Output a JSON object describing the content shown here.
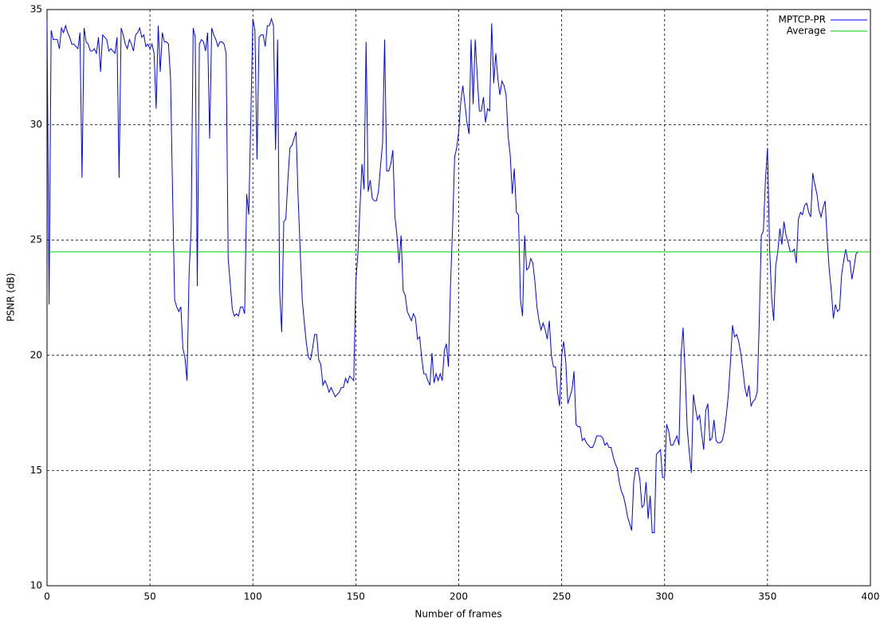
{
  "chart_data": {
    "type": "line",
    "xlabel": "Number of frames",
    "ylabel": "PSNR (dB)",
    "xlim": [
      0,
      400
    ],
    "ylim": [
      10,
      35
    ],
    "xticks": [
      0,
      50,
      100,
      150,
      200,
      250,
      300,
      350,
      400
    ],
    "yticks": [
      10,
      15,
      20,
      25,
      30,
      35
    ],
    "grid": true,
    "legend": "top-right",
    "series": [
      {
        "name": "MPTCP-PR",
        "color": "#0000ff",
        "x": [
          0,
          1,
          2,
          3,
          4,
          5,
          6,
          7,
          8,
          9,
          10,
          11,
          12,
          13,
          14,
          15,
          16,
          17,
          18,
          19,
          20,
          21,
          22,
          23,
          24,
          25,
          26,
          27,
          28,
          29,
          30,
          31,
          32,
          33,
          34,
          35,
          36,
          37,
          38,
          39,
          40,
          41,
          42,
          43,
          44,
          45,
          46,
          47,
          48,
          49,
          50,
          51,
          52,
          53,
          54,
          55,
          56,
          57,
          58,
          59,
          60,
          61,
          62,
          63,
          64,
          65,
          66,
          67,
          68,
          69,
          70,
          71,
          72,
          73,
          74,
          75,
          76,
          77,
          78,
          79,
          80,
          81,
          82,
          83,
          84,
          85,
          86,
          87,
          88,
          89,
          90,
          91,
          92,
          93,
          94,
          95,
          96,
          97,
          98,
          100,
          101,
          102,
          103,
          104,
          105,
          106,
          107,
          108,
          109,
          110,
          111,
          112,
          113,
          114,
          115,
          116,
          117,
          118,
          119,
          120,
          121,
          122,
          123,
          124,
          125,
          126,
          127,
          128,
          129,
          130,
          131,
          132,
          133,
          134,
          135,
          136,
          137,
          138,
          139,
          140,
          141,
          142,
          143,
          144,
          145,
          146,
          147,
          148,
          149,
          150,
          151,
          153,
          154,
          155,
          156,
          157,
          158,
          159,
          160,
          161,
          162,
          163,
          164,
          165,
          166,
          167,
          168,
          169,
          170,
          171,
          172,
          173,
          174,
          175,
          176,
          177,
          178,
          179,
          180,
          181,
          182,
          183,
          184,
          185,
          186,
          187,
          188,
          189,
          190,
          191,
          192,
          193,
          194,
          195,
          196,
          197,
          198,
          199,
          200,
          201,
          202,
          204,
          205,
          206,
          207,
          208,
          209,
          210,
          211,
          212,
          213,
          214,
          215,
          216,
          217,
          218,
          219,
          220,
          221,
          222,
          223,
          224,
          225,
          226,
          227,
          228,
          229,
          230,
          231,
          232,
          233,
          234,
          235,
          236,
          237,
          238,
          239,
          240,
          241,
          242,
          243,
          244,
          245,
          246,
          247,
          248,
          249,
          250,
          251,
          252,
          253,
          255,
          256,
          257,
          258,
          259,
          260,
          261,
          262,
          263,
          264,
          265,
          266,
          267,
          268,
          269,
          270,
          271,
          272,
          273,
          274,
          275,
          276,
          277,
          278,
          279,
          280,
          281,
          282,
          283,
          284,
          285,
          286,
          287,
          288,
          289,
          290,
          291,
          292,
          293,
          294,
          295,
          296,
          297,
          298,
          299,
          300,
          301,
          302,
          303,
          304,
          306,
          307,
          308,
          309,
          310,
          311,
          312,
          313,
          314,
          315,
          316,
          317,
          318,
          319,
          320,
          321,
          322,
          323,
          324,
          325,
          326,
          327,
          328,
          329,
          330,
          331,
          332,
          333,
          334,
          335,
          336,
          337,
          338,
          339,
          340,
          341,
          342,
          343,
          344,
          345,
          346,
          347,
          348,
          349,
          350,
          351,
          352,
          353,
          354,
          355,
          356,
          357,
          358,
          359,
          360,
          361,
          362,
          363,
          364,
          365,
          366,
          367,
          368,
          369,
          370,
          371,
          372,
          373,
          374,
          375,
          376,
          377,
          378,
          379,
          380,
          381,
          382,
          383,
          384,
          385,
          386,
          387,
          388,
          389,
          390,
          391,
          392,
          393,
          394
        ],
        "values": [
          34.5,
          22.2,
          34.1,
          33.7,
          33.7,
          33.7,
          33.3,
          34.2,
          34.0,
          34.3,
          34.0,
          33.8,
          33.5,
          33.5,
          33.4,
          33.3,
          34.0,
          27.7,
          34.2,
          33.6,
          33.5,
          33.2,
          33.2,
          33.3,
          33.1,
          33.8,
          32.3,
          33.9,
          33.8,
          33.7,
          33.2,
          33.3,
          33.2,
          33.1,
          33.8,
          27.7,
          34.2,
          33.9,
          33.5,
          33.3,
          33.7,
          33.5,
          33.2,
          33.9,
          34.0,
          34.2,
          33.8,
          33.9,
          33.4,
          33.5,
          33.3,
          33.5,
          33.1,
          30.7,
          34.3,
          32.3,
          34.0,
          33.6,
          33.6,
          33.5,
          32.0,
          27.0,
          22.4,
          22.1,
          21.9,
          22.1,
          20.3,
          19.9,
          18.9,
          23.5,
          25.5,
          34.2,
          33.8,
          23.0,
          33.5,
          33.7,
          33.6,
          33.2,
          34.0,
          29.4,
          34.2,
          33.9,
          33.7,
          33.4,
          33.6,
          33.6,
          33.5,
          33.1,
          24.2,
          23.1,
          22.0,
          21.7,
          21.8,
          21.7,
          22.1,
          22.1,
          21.8,
          27.0,
          26.1,
          34.6,
          34.1,
          28.5,
          33.8,
          33.9,
          33.9,
          33.4,
          34.3,
          34.3,
          34.6,
          34.3,
          28.9,
          33.7,
          22.8,
          21.0,
          25.8,
          25.9,
          27.6,
          29.0,
          29.1,
          29.4,
          29.7,
          26.8,
          24.5,
          22.4,
          21.4,
          20.5,
          19.9,
          19.8,
          20.3,
          20.9,
          20.9,
          19.8,
          19.6,
          18.7,
          18.9,
          18.7,
          18.4,
          18.6,
          18.4,
          18.2,
          18.3,
          18.4,
          18.6,
          18.6,
          19.0,
          18.8,
          19.1,
          19.0,
          18.9,
          23.2,
          24.4,
          28.3,
          27.2,
          33.6,
          27.1,
          27.6,
          26.8,
          26.7,
          26.7,
          27.1,
          28.2,
          29.2,
          33.7,
          28.0,
          28.0,
          28.3,
          28.9,
          26.0,
          25.2,
          24.0,
          25.2,
          22.8,
          22.6,
          21.9,
          21.7,
          21.5,
          21.8,
          21.6,
          20.7,
          20.8,
          19.9,
          19.2,
          19.2,
          18.9,
          18.7,
          20.1,
          18.8,
          19.2,
          18.9,
          19.2,
          18.9,
          20.2,
          20.5,
          19.5,
          23.0,
          25.5,
          28.6,
          29.0,
          29.7,
          31.0,
          31.7,
          30.1,
          29.6,
          33.7,
          30.9,
          33.7,
          32.1,
          30.6,
          30.6,
          31.2,
          30.1,
          30.7,
          30.6,
          34.4,
          31.8,
          33.1,
          32.0,
          31.3,
          31.9,
          31.7,
          31.3,
          29.5,
          28.7,
          27.0,
          28.1,
          26.2,
          26.1,
          22.4,
          21.7,
          25.2,
          23.7,
          23.8,
          24.2,
          24.0,
          23.2,
          22.1,
          21.5,
          21.1,
          21.4,
          21.1,
          20.7,
          21.5,
          20.0,
          19.5,
          19.5,
          18.4,
          17.8,
          20.0,
          20.6,
          19.7,
          17.9,
          18.5,
          19.3,
          17.0,
          16.9,
          16.9,
          16.3,
          16.4,
          16.2,
          16.1,
          16.0,
          16.0,
          16.2,
          16.5,
          16.5,
          16.5,
          16.4,
          16.1,
          16.2,
          16.0,
          16.0,
          15.6,
          15.3,
          15.1,
          14.5,
          14.1,
          13.9,
          13.5,
          13.0,
          12.7,
          12.4,
          14.5,
          15.1,
          15.1,
          14.6,
          13.4,
          13.5,
          14.5,
          12.9,
          13.9,
          12.3,
          12.3,
          15.7,
          15.8,
          15.9,
          14.7,
          14.7,
          17.0,
          16.7,
          16.1,
          16.1,
          16.5,
          16.1,
          20.0,
          21.2,
          19.2,
          16.8,
          15.8,
          14.9,
          18.3,
          17.7,
          17.2,
          17.4,
          16.6,
          15.9,
          17.6,
          17.9,
          16.3,
          16.4,
          17.2,
          16.3,
          16.2,
          16.2,
          16.3,
          16.7,
          17.4,
          18.3,
          19.7,
          21.3,
          20.8,
          20.9,
          20.6,
          20.1,
          19.4,
          18.6,
          18.2,
          18.7,
          17.8,
          18.0,
          18.1,
          18.4,
          21.5,
          25.2,
          25.4,
          27.6,
          29.0,
          24.7,
          22.5,
          21.5,
          23.9,
          24.5,
          25.5,
          24.8,
          25.8,
          25.2,
          24.9,
          24.5,
          24.5,
          24.6,
          24.0,
          25.9,
          26.2,
          26.1,
          26.5,
          26.6,
          26.2,
          26.0,
          27.9,
          27.4,
          27.0,
          26.3,
          26.0,
          26.4,
          26.7,
          25.0,
          23.7,
          22.8,
          21.6,
          22.2,
          21.9,
          22.0,
          23.5,
          24.1,
          24.6,
          24.1,
          24.1,
          23.3,
          23.8,
          24.4,
          24.5
        ]
      },
      {
        "name": "Average",
        "color": "#00cc00",
        "x": [
          0,
          400
        ],
        "values": [
          24.49,
          24.49
        ]
      }
    ]
  }
}
